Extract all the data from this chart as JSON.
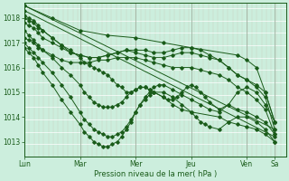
{
  "background_color": "#cceedd",
  "line_color": "#1a5c1a",
  "ylabel": "Pression niveau de la mer( hPa )",
  "xtick_labels": [
    "Lun",
    "Mar",
    "Mer",
    "Jeu",
    "Ven",
    "Sa"
  ],
  "xtick_positions": [
    0.0,
    1.0,
    2.0,
    3.0,
    4.0,
    4.5
  ],
  "ylim": [
    1012.4,
    1018.6
  ],
  "yticks": [
    1013,
    1014,
    1015,
    1016,
    1017,
    1018
  ],
  "xlim": [
    0.0,
    4.7
  ],
  "figsize": [
    3.2,
    2.0
  ],
  "dpi": 100,
  "series": [
    {
      "x": [
        0.0,
        4.5
      ],
      "y": [
        1018.5,
        1013.5
      ]
    },
    {
      "x": [
        0.0,
        4.5
      ],
      "y": [
        1018.3,
        1013.2
      ]
    },
    {
      "x": [
        0.0,
        0.08,
        0.17,
        0.25,
        0.33,
        0.5,
        0.67,
        0.83,
        1.0,
        1.17,
        1.33,
        1.5,
        1.67,
        1.83,
        2.0,
        2.17,
        2.33,
        2.5,
        2.67,
        2.83,
        3.0,
        3.17,
        3.33,
        3.5,
        3.67,
        3.83,
        4.0,
        4.17,
        4.33,
        4.5
      ],
      "y": [
        1018.0,
        1017.9,
        1017.8,
        1017.6,
        1017.5,
        1017.2,
        1016.9,
        1016.6,
        1016.5,
        1016.4,
        1016.4,
        1016.5,
        1016.6,
        1016.7,
        1016.6,
        1016.5,
        1016.4,
        1016.4,
        1016.5,
        1016.6,
        1016.6,
        1016.5,
        1016.4,
        1016.3,
        1016.0,
        1015.7,
        1015.5,
        1015.3,
        1015.0,
        1013.8
      ]
    },
    {
      "x": [
        0.0,
        0.08,
        0.17,
        0.25,
        0.33,
        0.5,
        0.67,
        0.83,
        1.0,
        1.17,
        1.33,
        1.5,
        1.67,
        1.83,
        2.0,
        2.17,
        2.33,
        2.5,
        2.67,
        2.83,
        3.0,
        3.17,
        3.33,
        3.5,
        3.67,
        3.83,
        4.0,
        4.17,
        4.33,
        4.5
      ],
      "y": [
        1017.8,
        1017.7,
        1017.6,
        1017.4,
        1017.2,
        1017.0,
        1016.8,
        1016.6,
        1016.5,
        1016.4,
        1016.4,
        1016.5,
        1016.6,
        1016.7,
        1016.7,
        1016.7,
        1016.6,
        1016.6,
        1016.7,
        1016.8,
        1016.8,
        1016.7,
        1016.5,
        1016.3,
        1016.0,
        1015.7,
        1015.5,
        1015.2,
        1014.8,
        1013.5
      ]
    },
    {
      "x": [
        0.0,
        0.08,
        0.17,
        0.25,
        0.33,
        0.5,
        0.67,
        0.83,
        1.0,
        1.17,
        1.33,
        1.5,
        1.67,
        1.83,
        2.0,
        2.17,
        2.33,
        2.5,
        2.67,
        2.83,
        3.0,
        3.17,
        3.33,
        3.5,
        3.67,
        3.83,
        4.0,
        4.17,
        4.33,
        4.5
      ],
      "y": [
        1017.2,
        1017.1,
        1017.0,
        1016.8,
        1016.7,
        1016.5,
        1016.3,
        1016.2,
        1016.2,
        1016.2,
        1016.3,
        1016.3,
        1016.4,
        1016.4,
        1016.4,
        1016.3,
        1016.2,
        1016.1,
        1016.0,
        1016.0,
        1016.0,
        1015.9,
        1015.8,
        1015.7,
        1015.5,
        1015.2,
        1015.0,
        1014.7,
        1014.3,
        1013.3
      ]
    },
    {
      "x": [
        0.0,
        0.08,
        0.17,
        0.25,
        0.33,
        0.5,
        0.67,
        0.83,
        1.0,
        1.08,
        1.17,
        1.25,
        1.33,
        1.42,
        1.5,
        1.58,
        1.67,
        1.75,
        1.83,
        1.92,
        2.0,
        2.08,
        2.17,
        2.25,
        2.33,
        2.5,
        2.58,
        2.67,
        2.75,
        2.83,
        2.92,
        3.0,
        3.08,
        3.17,
        3.25,
        3.33,
        3.5,
        3.67,
        3.83,
        4.0,
        4.17,
        4.33,
        4.5
      ],
      "y": [
        1018.1,
        1018.0,
        1017.9,
        1017.7,
        1017.5,
        1017.2,
        1016.9,
        1016.7,
        1016.4,
        1016.2,
        1016.1,
        1016.0,
        1015.9,
        1015.8,
        1015.7,
        1015.5,
        1015.3,
        1015.2,
        1015.0,
        1015.0,
        1015.1,
        1015.2,
        1015.2,
        1015.1,
        1015.0,
        1014.8,
        1014.7,
        1014.7,
        1014.8,
        1015.0,
        1015.2,
        1015.3,
        1015.2,
        1015.0,
        1014.8,
        1014.6,
        1014.3,
        1014.5,
        1014.3,
        1014.2,
        1014.0,
        1013.8,
        1013.3
      ]
    },
    {
      "x": [
        0.0,
        0.08,
        0.17,
        0.25,
        0.33,
        0.5,
        0.67,
        0.83,
        1.0,
        1.08,
        1.17,
        1.25,
        1.33,
        1.42,
        1.5,
        1.58,
        1.67,
        1.75,
        1.83,
        1.92,
        2.0,
        2.08,
        2.17,
        2.25,
        2.33,
        2.5,
        2.67,
        2.83,
        3.0,
        3.5,
        3.67,
        3.83,
        4.0,
        4.17,
        4.33,
        4.5
      ],
      "y": [
        1017.5,
        1017.3,
        1017.1,
        1016.9,
        1016.7,
        1016.4,
        1016.0,
        1015.7,
        1015.3,
        1015.0,
        1014.8,
        1014.6,
        1014.5,
        1014.4,
        1014.4,
        1014.4,
        1014.5,
        1014.6,
        1014.8,
        1015.0,
        1015.1,
        1015.2,
        1015.2,
        1015.1,
        1015.0,
        1014.8,
        1014.5,
        1014.3,
        1014.2,
        1014.0,
        1013.8,
        1013.7,
        1013.6,
        1013.5,
        1013.3,
        1013.0
      ]
    },
    {
      "x": [
        0.0,
        0.08,
        0.17,
        0.25,
        0.33,
        0.5,
        0.67,
        0.83,
        1.0,
        1.08,
        1.17,
        1.25,
        1.33,
        1.42,
        1.5,
        1.58,
        1.67,
        1.75,
        1.83,
        1.92,
        2.0,
        2.08,
        2.17,
        2.25,
        2.33,
        2.5,
        2.67,
        2.83,
        3.0,
        3.08,
        3.17,
        3.25,
        3.33,
        3.5,
        3.67,
        3.83,
        4.0,
        4.17,
        4.33,
        4.5
      ],
      "y": [
        1017.0,
        1016.8,
        1016.6,
        1016.4,
        1016.2,
        1015.8,
        1015.3,
        1014.8,
        1014.2,
        1013.9,
        1013.7,
        1013.5,
        1013.4,
        1013.3,
        1013.2,
        1013.2,
        1013.3,
        1013.4,
        1013.6,
        1013.9,
        1014.2,
        1014.5,
        1014.7,
        1014.9,
        1015.0,
        1015.0,
        1014.8,
        1014.5,
        1014.2,
        1014.0,
        1013.8,
        1013.7,
        1013.6,
        1013.5,
        1013.8,
        1014.0,
        1014.0,
        1013.8,
        1013.5,
        1013.0
      ]
    },
    {
      "x": [
        0.0,
        0.08,
        0.17,
        0.25,
        0.33,
        0.5,
        0.67,
        0.83,
        1.0,
        1.08,
        1.17,
        1.25,
        1.33,
        1.42,
        1.5,
        1.58,
        1.67,
        1.75,
        1.83,
        1.92,
        2.0,
        2.08,
        2.17,
        2.25,
        2.33,
        2.42,
        2.5,
        2.67,
        2.83,
        3.0,
        3.17,
        3.33,
        3.5,
        3.67,
        3.83,
        4.0,
        4.17,
        4.33,
        4.5
      ],
      "y": [
        1016.8,
        1016.6,
        1016.4,
        1016.1,
        1015.8,
        1015.3,
        1014.7,
        1014.2,
        1013.7,
        1013.4,
        1013.2,
        1013.0,
        1012.9,
        1012.8,
        1012.8,
        1012.9,
        1013.0,
        1013.2,
        1013.5,
        1013.8,
        1014.2,
        1014.5,
        1014.8,
        1015.0,
        1015.2,
        1015.3,
        1015.3,
        1015.1,
        1014.9,
        1014.7,
        1014.5,
        1014.3,
        1014.2,
        1014.5,
        1015.0,
        1015.2,
        1015.0,
        1014.5,
        1013.8
      ]
    },
    {
      "x": [
        0.0,
        0.5,
        1.0,
        1.5,
        2.0,
        2.5,
        3.0,
        3.83,
        4.0,
        4.17,
        4.33,
        4.5
      ],
      "y": [
        1018.5,
        1018.0,
        1017.5,
        1017.3,
        1017.2,
        1017.0,
        1016.8,
        1016.5,
        1016.3,
        1016.0,
        1015.0,
        1013.8
      ]
    }
  ]
}
